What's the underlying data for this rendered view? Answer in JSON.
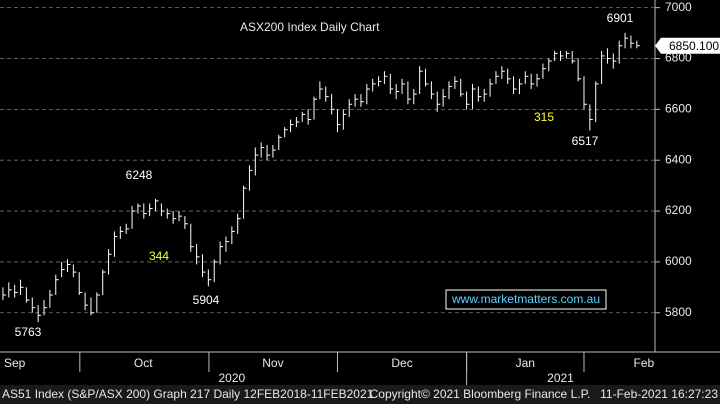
{
  "chart_data": {
    "type": "ohlc",
    "title": "ASX200 Index Daily Chart",
    "title_color": "#4fd04f",
    "bar_color": "#ffffff",
    "grid": true,
    "xlim": [
      -0.5,
      111.1
    ],
    "xticks": [
      {
        "value": 2,
        "label": "Sep"
      },
      {
        "value": 23.9,
        "label": "Oct"
      },
      {
        "value": 46,
        "label": "Nov"
      },
      {
        "value": 68,
        "label": "Dec"
      },
      {
        "value": 89,
        "label": "Jan"
      },
      {
        "value": 109.2,
        "label": "Feb"
      }
    ],
    "month_bounds": [
      13.1,
      35.1,
      57,
      79,
      99
    ],
    "years": [
      {
        "value": 39,
        "label": "2020"
      },
      {
        "value": 95,
        "label": "2021"
      }
    ],
    "year_bound": 79,
    "ylim": [
      5630,
      7030
    ],
    "yticks": [
      5800,
      6000,
      6200,
      6400,
      6600,
      6800,
      7000
    ],
    "high": [
      5900,
      5920,
      5910,
      5930,
      5900,
      5860,
      5830,
      5850,
      5890,
      5950,
      6000,
      6010,
      5990,
      5960,
      5880,
      5860,
      5880,
      5970,
      6050,
      6120,
      6140,
      6150,
      6220,
      6230,
      6230,
      6230,
      6248,
      6230,
      6210,
      6200,
      6200,
      6180,
      6150,
      6070,
      6030,
      5970,
      6010,
      6080,
      6100,
      6140,
      6190,
      6300,
      6380,
      6450,
      6470,
      6460,
      6460,
      6500,
      6530,
      6560,
      6570,
      6590,
      6600,
      6650,
      6710,
      6690,
      6660,
      6600,
      6600,
      6640,
      6660,
      6660,
      6700,
      6720,
      6730,
      6750,
      6740,
      6700,
      6720,
      6710,
      6680,
      6770,
      6760,
      6710,
      6670,
      6680,
      6710,
      6730,
      6720,
      6670,
      6700,
      6690,
      6680,
      6720,
      6750,
      6770,
      6760,
      6730,
      6720,
      6750,
      6740,
      6740,
      6780,
      6800,
      6830,
      6830,
      6830,
      6830,
      6800,
      6730,
      6620,
      6710,
      6830,
      6840,
      6820,
      6870,
      6901,
      6890,
      6870
    ],
    "low": [
      5850,
      5860,
      5860,
      5870,
      5840,
      5800,
      5763,
      5790,
      5820,
      5870,
      5940,
      5960,
      5940,
      5870,
      5810,
      5790,
      5800,
      5870,
      5950,
      6020,
      6090,
      6110,
      6130,
      6190,
      6170,
      6180,
      6200,
      6180,
      6170,
      6150,
      6160,
      6130,
      6040,
      5990,
      5940,
      5904,
      5920,
      5990,
      6040,
      6070,
      6110,
      6170,
      6280,
      6340,
      6410,
      6400,
      6410,
      6440,
      6490,
      6510,
      6530,
      6550,
      6540,
      6560,
      6640,
      6630,
      6580,
      6510,
      6520,
      6570,
      6610,
      6610,
      6620,
      6670,
      6690,
      6700,
      6660,
      6640,
      6660,
      6620,
      6620,
      6660,
      6690,
      6640,
      6590,
      6610,
      6640,
      6680,
      6650,
      6600,
      6600,
      6630,
      6630,
      6650,
      6700,
      6720,
      6700,
      6660,
      6660,
      6700,
      6680,
      6690,
      6720,
      6750,
      6790,
      6790,
      6800,
      6780,
      6710,
      6600,
      6517,
      6550,
      6700,
      6780,
      6760,
      6780,
      6840,
      6840,
      6840
    ],
    "close": [
      5870,
      5890,
      5880,
      5900,
      5850,
      5820,
      5790,
      5820,
      5870,
      5930,
      5970,
      5990,
      5960,
      5880,
      5830,
      5800,
      5870,
      5960,
      6030,
      6100,
      6120,
      6130,
      6200,
      6220,
      6190,
      6210,
      6240,
      6200,
      6190,
      6170,
      6180,
      6150,
      6060,
      6020,
      5960,
      5930,
      6000,
      6060,
      6080,
      6120,
      6170,
      6290,
      6360,
      6420,
      6450,
      6420,
      6440,
      6490,
      6520,
      6540,
      6550,
      6580,
      6560,
      6640,
      6680,
      6650,
      6600,
      6540,
      6580,
      6620,
      6640,
      6630,
      6680,
      6700,
      6710,
      6730,
      6680,
      6670,
      6700,
      6640,
      6660,
      6750,
      6700,
      6660,
      6620,
      6650,
      6690,
      6710,
      6660,
      6620,
      6680,
      6650,
      6660,
      6700,
      6730,
      6750,
      6720,
      6680,
      6700,
      6730,
      6700,
      6720,
      6760,
      6790,
      6820,
      6810,
      6820,
      6790,
      6720,
      6620,
      6560,
      6700,
      6810,
      6800,
      6790,
      6850,
      6880,
      6860,
      6850
    ],
    "last_price": {
      "value": 6850.1,
      "label": "6850.100"
    },
    "annotations": [
      {
        "text": "5763",
        "color": "#ffffff"
      },
      {
        "text": "6248",
        "color": "#ffffff"
      },
      {
        "text": "344",
        "color": "#ffff33"
      },
      {
        "text": "5904",
        "color": "#ffffff"
      },
      {
        "text": "315",
        "color": "#ffff33"
      },
      {
        "text": "6517",
        "color": "#ffffff"
      },
      {
        "text": "6901",
        "color": "#ffffff"
      }
    ],
    "watermark": "www.marketmatters.com.au",
    "footer": [
      "AS51 Index (S&P/ASX 200) Graph 217  Daily 12FEB2018-11FEB2021",
      "Copyright© 2021 Bloomberg Finance L.P.",
      "11-Feb-2021 16:27:23"
    ]
  }
}
